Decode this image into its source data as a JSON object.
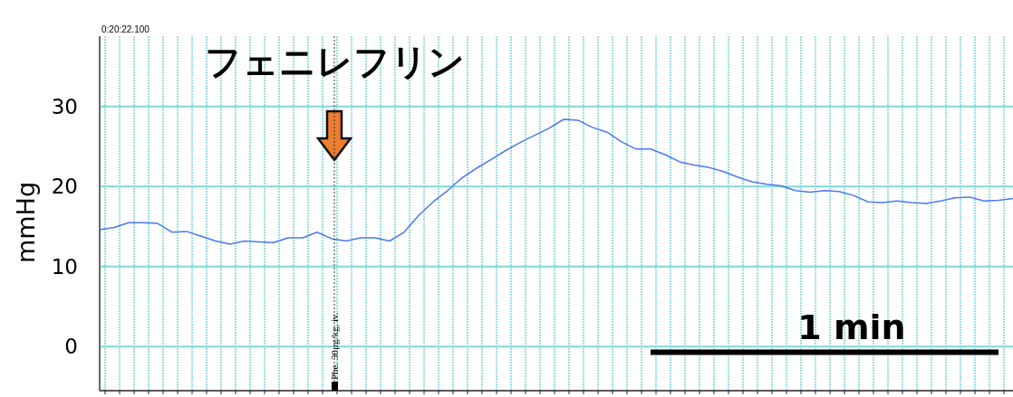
{
  "chart_data": {
    "type": "line",
    "ylabel": "mmHg",
    "categories": [
      null,
      null,
      null,
      null,
      null,
      null,
      null,
      null,
      null,
      null,
      null,
      null,
      null,
      null,
      null,
      null,
      null,
      null,
      null,
      null,
      null,
      null,
      null,
      null,
      null,
      null,
      null,
      null,
      null,
      null,
      null,
      null,
      null,
      null,
      null,
      null,
      null,
      null,
      null,
      null,
      null,
      null,
      null,
      null,
      null,
      null,
      null,
      null,
      null,
      null,
      null,
      null,
      null,
      null,
      null,
      null,
      null,
      null,
      null,
      null,
      null,
      null,
      null,
      null
    ],
    "series": [
      {
        "color": "#4a78f0",
        "values": [
          14.6,
          14.9,
          15.5,
          15.5,
          15.4,
          14.3,
          14.4,
          13.8,
          13.2,
          12.8,
          13.2,
          13.1,
          13.0,
          13.6,
          13.6,
          14.3,
          13.5,
          13.2,
          13.6,
          13.6,
          13.2,
          14.3,
          16.4,
          18.1,
          19.5,
          21.1,
          22.3,
          23.4,
          24.5,
          25.5,
          26.4,
          27.3,
          28.4,
          28.3,
          27.4,
          26.8,
          25.6,
          24.7,
          24.7,
          24.0,
          23.1,
          22.7,
          22.4,
          21.9,
          21.2,
          20.6,
          20.3,
          20.1,
          19.5,
          19.3,
          19.5,
          19.4,
          18.9,
          18.1,
          18.0,
          18.2,
          18.0,
          17.9,
          18.2,
          18.6,
          18.7,
          18.2,
          18.3,
          18.5
        ]
      },
      {
        "color": "#000000",
        "values": [
          null,
          null,
          null,
          null,
          null,
          null,
          null,
          null,
          null,
          null,
          null,
          null,
          null,
          null,
          null,
          null,
          null,
          null,
          null,
          null,
          null,
          null,
          null,
          null,
          null,
          null,
          null,
          null,
          null,
          null,
          null,
          null,
          null,
          null,
          null,
          null,
          null,
          null,
          -0.7,
          -0.7,
          -0.7,
          -0.7,
          -0.7,
          -0.7,
          -0.7,
          -0.7,
          -0.7,
          -0.7,
          -0.7,
          -0.7,
          -0.7,
          -0.7,
          -0.7,
          -0.7,
          -0.7,
          -0.7,
          -0.7,
          -0.7,
          -0.7,
          -0.7,
          -0.7,
          -0.7,
          -0.7,
          null
        ]
      }
    ],
    "ylim": [
      -5.5,
      38.8
    ],
    "yticks": [
      0,
      10,
      20,
      30
    ],
    "tick_labels": "y",
    "grid": true,
    "annotations": [
      "0:20:22.100",
      "フェニレフリン",
      "Phe. 30μg/kg, iv.",
      "1 min"
    ]
  }
}
